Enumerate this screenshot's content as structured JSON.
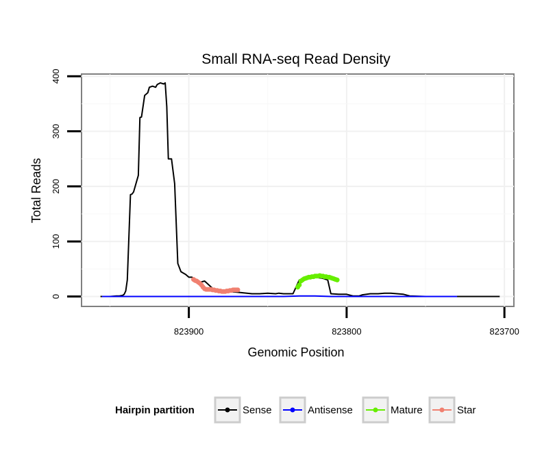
{
  "chart_data": {
    "type": "line",
    "title": "Small RNA-seq Read Density",
    "xlabel": "Genomic Position",
    "ylabel": "Total Reads",
    "x_reversed": true,
    "xlim": [
      823968,
      823694
    ],
    "ylim": [
      -18,
      404
    ],
    "xticks": [
      823900,
      823800,
      823700
    ],
    "xtick_labels": [
      "823900",
      "823800",
      "823700"
    ],
    "yticks": [
      0,
      100,
      200,
      300,
      400
    ],
    "ytick_labels": [
      "0",
      "100",
      "200",
      "300",
      "400"
    ],
    "grid": true,
    "legend": {
      "title": "Hairpin partition",
      "position": "bottom",
      "items": [
        {
          "label": "Sense",
          "color": "#000000"
        },
        {
          "label": "Antisense",
          "color": "#0000ff"
        },
        {
          "label": "Mature",
          "color": "#66ee00"
        },
        {
          "label": "Star",
          "color": "#f08070"
        }
      ]
    },
    "series": [
      {
        "name": "Sense",
        "color": "#000000",
        "x": [
          823956,
          823950,
          823946,
          823944,
          823942,
          823941,
          823940,
          823939,
          823937,
          823936,
          823935,
          823933,
          823932,
          823931,
          823930,
          823928,
          823926,
          823925,
          823923,
          823921,
          823920,
          823918,
          823917,
          823916,
          823915,
          823914,
          823913,
          823911,
          823909,
          823907,
          823905,
          823902,
          823900,
          823898,
          823896,
          823894,
          823890,
          823885,
          823880,
          823870,
          823860,
          823855,
          823850,
          823845,
          823843,
          823840,
          823836,
          823834,
          823830,
          823824,
          823820,
          823815,
          823812,
          823810,
          823805,
          823800,
          823796,
          823792,
          823790,
          823785,
          823780,
          823776,
          823772,
          823768,
          823764,
          823760,
          823750,
          823740,
          823730,
          823720,
          823710,
          823710,
          823703
        ],
        "y": [
          0,
          0,
          1,
          1,
          2,
          4,
          10,
          30,
          185,
          186,
          190,
          210,
          220,
          325,
          326,
          365,
          370,
          380,
          382,
          380,
          385,
          388,
          387,
          386,
          388,
          345,
          250,
          250,
          205,
          60,
          45,
          40,
          35,
          35,
          30,
          25,
          28,
          15,
          10,
          8,
          5,
          5,
          6,
          5,
          6,
          5,
          5,
          5,
          30,
          35,
          35,
          33,
          30,
          5,
          4,
          4,
          1,
          1,
          3,
          5,
          5,
          6,
          6,
          5,
          4,
          1,
          0,
          0,
          0,
          0,
          0,
          0,
          0
        ]
      },
      {
        "name": "Antisense",
        "color": "#0000ff",
        "x": [
          823955,
          823940,
          823920,
          823900,
          823880,
          823860,
          823840,
          823830,
          823820,
          823810,
          823800,
          823780,
          823760,
          823740,
          823730
        ],
        "y": [
          0,
          0,
          0,
          0,
          0,
          0,
          0,
          1,
          1,
          0,
          0,
          0,
          0,
          0,
          0
        ]
      },
      {
        "name": "Mature",
        "color": "#66ee00",
        "x": [
          823831,
          823830,
          823829,
          823828,
          823827,
          823826,
          823825,
          823824,
          823823,
          823822,
          823821,
          823820,
          823819,
          823818,
          823817,
          823816,
          823815,
          823814,
          823813,
          823812,
          823811,
          823810,
          823809,
          823808,
          823807,
          823806
        ],
        "y": [
          17,
          21,
          28,
          30,
          32,
          33,
          34,
          35,
          35,
          36,
          36,
          37,
          37,
          37,
          38,
          37,
          37,
          36,
          36,
          35,
          35,
          34,
          33,
          32,
          31,
          30
        ]
      },
      {
        "name": "Star",
        "color": "#f08070",
        "x": [
          823897,
          823896,
          823895,
          823894,
          823893,
          823892,
          823891,
          823890,
          823889,
          823888,
          823887,
          823886,
          823885,
          823884,
          823883,
          823882,
          823881,
          823880,
          823879,
          823878,
          823877,
          823876,
          823875,
          823874,
          823873,
          823872,
          823871,
          823870,
          823869
        ],
        "y": [
          31,
          29,
          28,
          26,
          24,
          21,
          17,
          14,
          13,
          13,
          13,
          13,
          12,
          12,
          11,
          11,
          10,
          10,
          9,
          9,
          9,
          10,
          10,
          11,
          11,
          12,
          12,
          12,
          12
        ]
      }
    ]
  }
}
